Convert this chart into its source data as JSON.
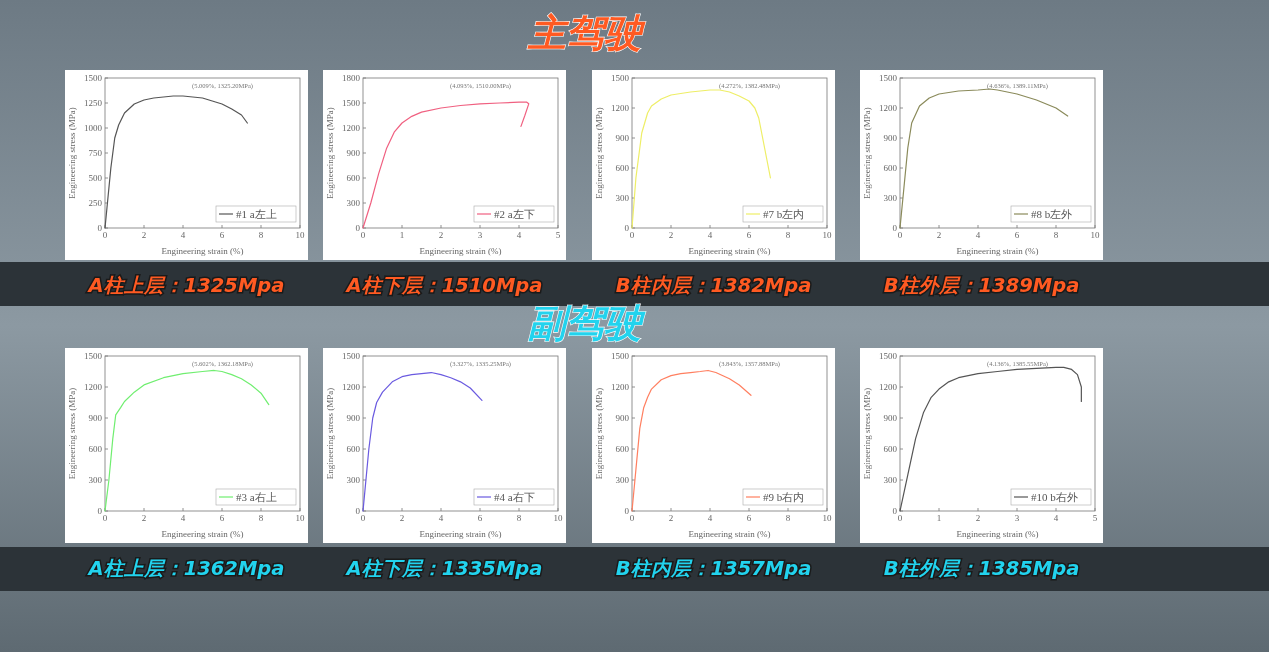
{
  "chart_data": [
    {
      "type": "other",
      "title": "主驾驶"
    },
    {
      "type": "line",
      "xlabel": "Engineering strain (%)",
      "ylabel": "Engineering stress (MPa)",
      "xlim": [
        0,
        10
      ],
      "xticks": [
        0,
        2,
        4,
        6,
        8,
        10
      ],
      "ylim": [
        0,
        1500
      ],
      "yticks": [
        0,
        250,
        500,
        750,
        1000,
        1250,
        1500
      ],
      "legend": "bottom right",
      "annotations": [
        "(5.009%, 1325.20MPa)",
        "A柱上层：1325Mpa"
      ],
      "series": [
        {
          "name": "#1 a左上",
          "color": "#555555",
          "x": [
            0,
            0.1,
            0.3,
            0.5,
            0.7,
            1.0,
            1.5,
            2,
            2.5,
            3,
            3.5,
            4,
            4.5,
            5,
            5.5,
            6,
            6.5,
            7,
            7.3
          ],
          "values": [
            0,
            200,
            600,
            900,
            1030,
            1150,
            1240,
            1280,
            1300,
            1310,
            1320,
            1320,
            1310,
            1300,
            1270,
            1240,
            1190,
            1130,
            1050
          ]
        }
      ]
    },
    {
      "type": "line",
      "xlabel": "Engineering strain (%)",
      "ylabel": "Engineering stress (MPa)",
      "xlim": [
        0,
        5
      ],
      "xticks": [
        0,
        1,
        2,
        3,
        4,
        5
      ],
      "ylim": [
        0,
        1800
      ],
      "yticks": [
        0,
        300,
        600,
        900,
        1200,
        1500,
        1800
      ],
      "legend": "bottom right",
      "annotations": [
        "(4.093%, 1510.00MPa)",
        "A柱下层：1510Mpa"
      ],
      "series": [
        {
          "name": "#2 a左下",
          "color": "#f06080",
          "x": [
            0,
            0.2,
            0.4,
            0.6,
            0.8,
            1,
            1.25,
            1.5,
            2,
            2.5,
            3,
            3.5,
            4,
            4.2,
            4.25,
            4.15,
            4.05
          ],
          "values": [
            0,
            300,
            650,
            950,
            1150,
            1260,
            1340,
            1390,
            1440,
            1470,
            1490,
            1500,
            1510,
            1510,
            1490,
            1350,
            1220
          ]
        }
      ]
    },
    {
      "type": "line",
      "xlabel": "Engineering strain (%)",
      "ylabel": "Engineering stress (MPa)",
      "xlim": [
        0,
        10
      ],
      "xticks": [
        0,
        2,
        4,
        6,
        8,
        10
      ],
      "ylim": [
        0,
        1500
      ],
      "yticks": [
        0,
        300,
        600,
        900,
        1200,
        1500
      ],
      "legend": "bottom right",
      "annotations": [
        "(4.272%, 1382.48MPa)",
        "B柱内层：1382Mpa"
      ],
      "series": [
        {
          "name": "#7 b左内",
          "color": "#eeee66",
          "x": [
            0,
            0.2,
            0.5,
            0.8,
            1,
            1.5,
            2,
            3,
            4,
            4.5,
            5,
            5.5,
            6,
            6.3,
            6.5,
            6.7,
            6.9,
            7.1
          ],
          "values": [
            0,
            500,
            950,
            1150,
            1220,
            1290,
            1330,
            1360,
            1380,
            1380,
            1360,
            1320,
            1270,
            1200,
            1100,
            900,
            700,
            500
          ]
        }
      ]
    },
    {
      "type": "line",
      "xlabel": "Engineering strain (%)",
      "ylabel": "Engineering stress (MPa)",
      "xlim": [
        0,
        10
      ],
      "xticks": [
        0,
        2,
        4,
        6,
        8,
        10
      ],
      "ylim": [
        0,
        1500
      ],
      "yticks": [
        0,
        300,
        600,
        900,
        1200,
        1500
      ],
      "legend": "bottom right",
      "annotations": [
        "(4.636%, 1389.11MPa)",
        "B柱外层：1389Mpa"
      ],
      "series": [
        {
          "name": "#8 b左外",
          "color": "#8a8a5a",
          "x": [
            0,
            0.2,
            0.4,
            0.6,
            1,
            1.5,
            2,
            3,
            4,
            4.6,
            5,
            6,
            7,
            8,
            8.6
          ],
          "values": [
            0,
            400,
            800,
            1050,
            1220,
            1300,
            1340,
            1370,
            1380,
            1390,
            1380,
            1340,
            1280,
            1200,
            1120
          ]
        }
      ]
    },
    {
      "type": "other",
      "title": "副驾驶"
    },
    {
      "type": "line",
      "xlabel": "Engineering strain (%)",
      "ylabel": "Engineering stress (MPa)",
      "xlim": [
        0,
        10
      ],
      "xticks": [
        0,
        2,
        4,
        6,
        8,
        10
      ],
      "ylim": [
        0,
        1500
      ],
      "yticks": [
        0,
        300,
        600,
        900,
        1200,
        1500
      ],
      "legend": "bottom right",
      "annotations": [
        "(5.602%, 1362.18MPa)",
        "A柱上层：1362Mpa"
      ],
      "series": [
        {
          "name": "#3 a右上",
          "color": "#70ee70",
          "x": [
            0,
            0.2,
            0.4,
            0.55,
            0.8,
            1,
            1.5,
            2,
            3,
            4,
            5,
            5.6,
            6,
            6.5,
            7,
            7.5,
            8,
            8.4
          ],
          "values": [
            0,
            300,
            700,
            930,
            1000,
            1060,
            1150,
            1220,
            1290,
            1330,
            1350,
            1360,
            1350,
            1320,
            1280,
            1220,
            1140,
            1030
          ]
        }
      ]
    },
    {
      "type": "line",
      "xlabel": "Engineering strain (%)",
      "ylabel": "Engineering stress (MPa)",
      "xlim": [
        0,
        10
      ],
      "xticks": [
        0,
        2,
        4,
        6,
        8,
        10
      ],
      "ylim": [
        0,
        1500
      ],
      "yticks": [
        0,
        300,
        600,
        900,
        1200,
        1500
      ],
      "legend": "bottom right",
      "annotations": [
        "(3.327%, 1335.25MPa)",
        "A柱下层：1335Mpa"
      ],
      "series": [
        {
          "name": "#4 a右下",
          "color": "#6a5ae0",
          "x": [
            0,
            0.1,
            0.3,
            0.5,
            0.7,
            1,
            1.5,
            2,
            2.5,
            3,
            3.5,
            4,
            4.5,
            5,
            5.5,
            6.1
          ],
          "values": [
            0,
            200,
            600,
            900,
            1050,
            1150,
            1250,
            1300,
            1320,
            1330,
            1340,
            1320,
            1290,
            1250,
            1190,
            1070
          ]
        }
      ]
    },
    {
      "type": "line",
      "xlabel": "Engineering strain (%)",
      "ylabel": "Engineering stress (MPa)",
      "xlim": [
        0,
        10
      ],
      "xticks": [
        0,
        2,
        4,
        6,
        8,
        10
      ],
      "ylim": [
        0,
        1500
      ],
      "yticks": [
        0,
        300,
        600,
        900,
        1200,
        1500
      ],
      "legend": "bottom right",
      "annotations": [
        "(3.843%, 1357.88MPa)",
        "B柱内层：1357Mpa"
      ],
      "series": [
        {
          "name": "#9 b右内",
          "color": "#ff7f60",
          "x": [
            0,
            0.2,
            0.4,
            0.6,
            0.8,
            1,
            1.5,
            2,
            2.5,
            3,
            3.5,
            3.9,
            4.3,
            5,
            5.5,
            6.1
          ],
          "values": [
            0,
            400,
            800,
            1000,
            1100,
            1180,
            1270,
            1310,
            1330,
            1340,
            1350,
            1360,
            1340,
            1280,
            1220,
            1120
          ]
        }
      ]
    },
    {
      "type": "line",
      "xlabel": "Engineering strain (%)",
      "ylabel": "Engineering stress (MPa)",
      "xlim": [
        0,
        5
      ],
      "xticks": [
        0,
        1,
        2,
        3,
        4,
        5
      ],
      "ylim": [
        0,
        1500
      ],
      "yticks": [
        0,
        300,
        600,
        900,
        1200,
        1500
      ],
      "legend": "bottom right",
      "annotations": [
        "(4.136%, 1385.55MPa)",
        "B柱外层：1385Mpa"
      ],
      "series": [
        {
          "name": "#10 b右外",
          "color": "#555555",
          "x": [
            0,
            0.2,
            0.4,
            0.6,
            0.8,
            1,
            1.25,
            1.5,
            2,
            2.5,
            3,
            3.5,
            4,
            4.2,
            4.4,
            4.55,
            4.65,
            4.65
          ],
          "values": [
            0,
            350,
            700,
            950,
            1100,
            1180,
            1250,
            1290,
            1330,
            1350,
            1370,
            1380,
            1390,
            1390,
            1370,
            1320,
            1200,
            1060
          ]
        }
      ]
    }
  ]
}
